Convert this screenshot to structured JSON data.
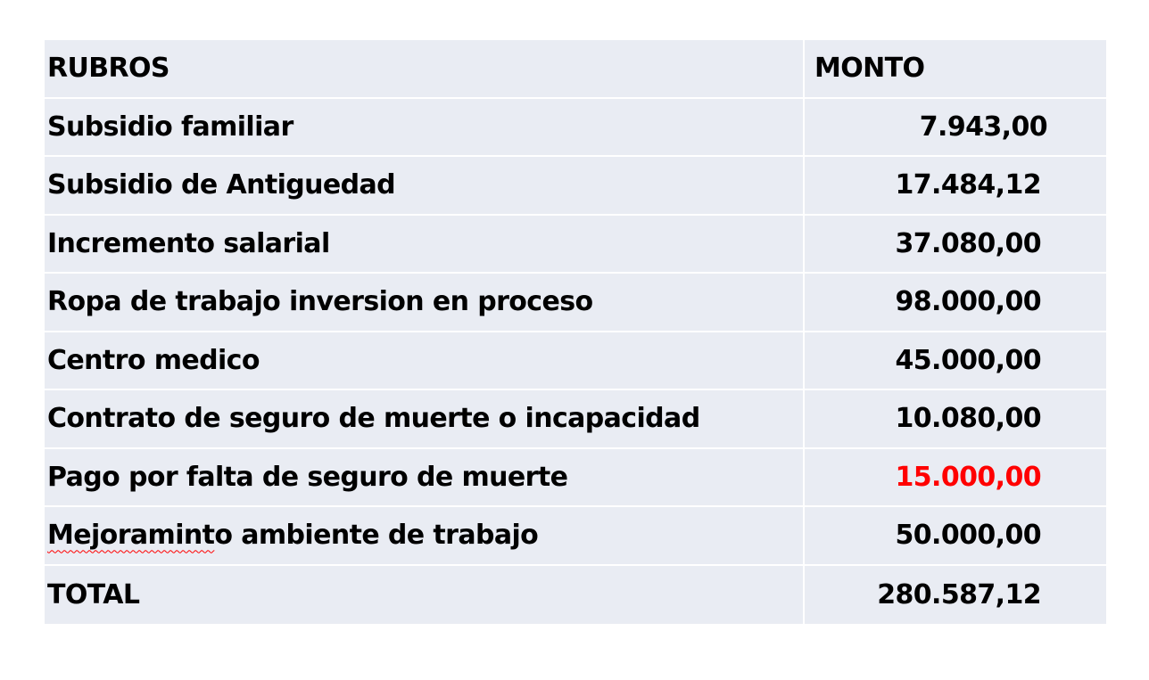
{
  "table": {
    "header": {
      "rubro": "RUBROS",
      "monto": "MONTO"
    },
    "rows": [
      {
        "rubro": "Subsidio familiar",
        "monto": "7.943,00"
      },
      {
        "rubro": "Subsidio de Antiguedad",
        "monto": "17.484,12"
      },
      {
        "rubro": "Incremento salarial",
        "monto": "37.080,00"
      },
      {
        "rubro": "Ropa de trabajo inversion en proceso",
        "monto": "98.000,00"
      },
      {
        "rubro": "Centro medico",
        "monto": "45.000,00"
      },
      {
        "rubro": "Contrato de seguro de muerte o incapacidad",
        "monto": "10.080,00"
      },
      {
        "rubro": "Pago por falta de seguro de muerte",
        "monto": "15.000,00",
        "monto_color": "#ff0000"
      },
      {
        "rubro_misspelled": "Mejoramint",
        "rubro_rest": "o ambiente de trabajo",
        "monto": "50.000,00"
      }
    ],
    "total": {
      "rubro": "TOTAL",
      "monto": "280.587,12"
    }
  },
  "colors": {
    "cell_background": "#e9ecf3",
    "highlight": "#ff0000",
    "text": "#000000"
  }
}
